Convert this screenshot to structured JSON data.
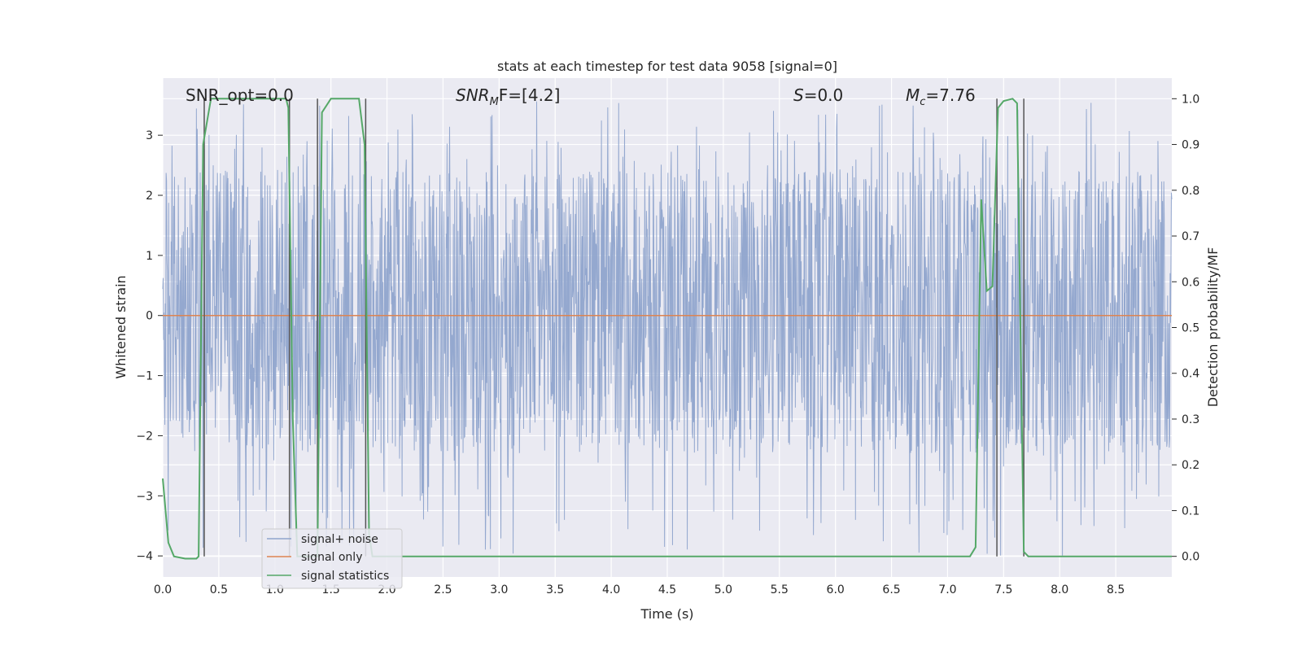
{
  "chart_data": {
    "type": "line",
    "title": "stats at each timestep for test data 9058 [signal=0]",
    "xlabel": "Time (s)",
    "ylabel_left": "Whitened strain",
    "ylabel_right": "Detection probability/MF",
    "xlim": [
      0.0,
      9.0
    ],
    "ylim_left": [
      -4.35,
      3.95
    ],
    "ylim_right": [
      -0.045,
      1.045
    ],
    "x_ticks": [
      "0.0",
      "0.5",
      "1.0",
      "1.5",
      "2.0",
      "2.5",
      "3.0",
      "3.5",
      "4.0",
      "4.5",
      "5.0",
      "5.5",
      "6.0",
      "6.5",
      "7.0",
      "7.5",
      "8.0",
      "8.5"
    ],
    "y_ticks_left": [
      "3",
      "2",
      "1",
      "0",
      "−1",
      "−2",
      "−3",
      "−4"
    ],
    "y_ticks_right": [
      "1.0",
      "0.9",
      "0.8",
      "0.7",
      "0.6",
      "0.5",
      "0.4",
      "0.3",
      "0.2",
      "0.1",
      "0.0"
    ],
    "grid": true,
    "legend_location": "lower-left",
    "annotations": {
      "snr_opt": "SNR_opt=0.0",
      "snr_mf_base": "SNR",
      "snr_mf_sub": "M",
      "snr_mf_rest": "F=[4.2]",
      "s_var": "S",
      "s_value": "=0.0",
      "mc_base": "M",
      "mc_sub": "c",
      "mc_value": "=7.76"
    },
    "series": [
      {
        "name": "signal+ noise",
        "axis": "left",
        "color": "#8fa4cc",
        "note": "whitened noise, approx uniform between -2.6 and 3.5",
        "envelope": {
          "typical_low": -2.3,
          "typical_high": 2.4,
          "extreme_low": -4.0,
          "extreme_high": 3.6
        }
      },
      {
        "name": "signal only",
        "axis": "left",
        "color": "#dd8452",
        "x": [
          0.0,
          9.0
        ],
        "y": [
          0.0,
          0.0
        ]
      },
      {
        "name": "signal statistics",
        "axis": "right",
        "color": "#55a868",
        "x": [
          0.0,
          0.05,
          0.1,
          0.2,
          0.3,
          0.32,
          0.36,
          0.43,
          0.5,
          1.0,
          1.1,
          1.12,
          1.16,
          1.2,
          1.25,
          1.3,
          1.35,
          1.38,
          1.42,
          1.5,
          1.75,
          1.8,
          1.84,
          1.87,
          1.9,
          2.0,
          2.5,
          3.0,
          4.0,
          5.0,
          6.0,
          7.0,
          7.2,
          7.25,
          7.3,
          7.35,
          7.4,
          7.45,
          7.5,
          7.58,
          7.62,
          7.68,
          7.72,
          7.75,
          7.8,
          8.0,
          9.0
        ],
        "y": [
          0.17,
          0.03,
          0.0,
          -0.005,
          -0.005,
          0.0,
          0.9,
          1.0,
          1.0,
          1.0,
          1.0,
          0.98,
          0.3,
          0.0,
          0.0,
          0.0,
          0.0,
          0.0,
          0.97,
          1.0,
          1.0,
          0.9,
          0.05,
          0.0,
          0.0,
          0.0,
          0.0,
          0.0,
          0.0,
          0.0,
          0.0,
          0.0,
          0.0,
          0.02,
          0.78,
          0.58,
          0.59,
          0.98,
          0.995,
          1.0,
          0.99,
          0.01,
          0.0,
          0.0,
          0.0,
          0.0,
          0.0
        ]
      }
    ],
    "vertical_markers_x": [
      0.37,
      1.13,
      1.38,
      1.81,
      7.44,
      7.68
    ],
    "marker_color": "#555555"
  }
}
